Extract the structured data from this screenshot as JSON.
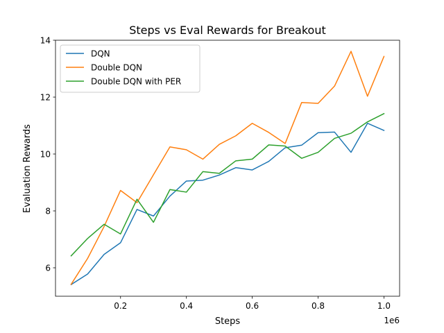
{
  "chart_data": {
    "type": "line",
    "title": "Steps vs Eval Rewards for Breakout",
    "xlabel": "Steps",
    "ylabel": "Evaluation Rewards",
    "x_offset_label": "1e6",
    "xlim": [
      0.0025,
      1.0475
    ],
    "ylim": [
      5.0,
      14.0
    ],
    "xticks": [
      0.2,
      0.4,
      0.6,
      0.8,
      1.0
    ],
    "xtick_labels": [
      "0.2",
      "0.4",
      "0.6",
      "0.8",
      "1.0"
    ],
    "yticks": [
      6,
      8,
      10,
      12,
      14
    ],
    "ytick_labels": [
      "6",
      "8",
      "10",
      "12",
      "14"
    ],
    "grid": false,
    "legend_position": "upper-left",
    "x": [
      0.05,
      0.1,
      0.15,
      0.2,
      0.25,
      0.3,
      0.35,
      0.4,
      0.45,
      0.5,
      0.55,
      0.6,
      0.65,
      0.7,
      0.75,
      0.8,
      0.85,
      0.9,
      0.95,
      1.0
    ],
    "series": [
      {
        "name": "DQN",
        "color": "#1f77b4",
        "values": [
          5.41,
          5.78,
          6.47,
          6.88,
          8.05,
          7.82,
          8.52,
          9.05,
          9.08,
          9.26,
          9.52,
          9.44,
          9.74,
          10.22,
          10.31,
          10.75,
          10.77,
          10.06,
          11.08,
          10.83
        ]
      },
      {
        "name": "Double DQN",
        "color": "#ff7f0e",
        "values": [
          5.42,
          6.33,
          7.45,
          8.72,
          8.29,
          9.27,
          10.25,
          10.15,
          9.82,
          10.34,
          10.64,
          11.08,
          10.76,
          10.37,
          11.81,
          11.78,
          12.39,
          13.61,
          12.03,
          13.43
        ]
      },
      {
        "name": "Double DQN with PER",
        "color": "#2ca02c",
        "values": [
          6.42,
          7.03,
          7.53,
          7.19,
          8.41,
          7.6,
          8.75,
          8.66,
          9.38,
          9.32,
          9.76,
          9.82,
          10.32,
          10.28,
          9.85,
          10.06,
          10.55,
          10.73,
          11.13,
          11.42
        ]
      }
    ]
  }
}
